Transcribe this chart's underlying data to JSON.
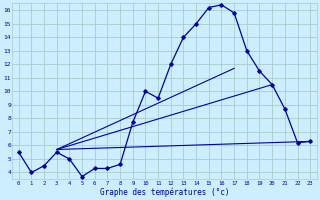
{
  "xlabel": "Graphe des températures (°c)",
  "bg_color": "#cceeff",
  "grid_color": "#aacccc",
  "line_color": "#0000aa",
  "xlim": [
    -0.5,
    23.5
  ],
  "ylim": [
    3.5,
    16.5
  ],
  "xticks": [
    0,
    1,
    2,
    3,
    4,
    5,
    6,
    7,
    8,
    9,
    10,
    11,
    12,
    13,
    14,
    15,
    16,
    17,
    18,
    19,
    20,
    21,
    22,
    23
  ],
  "yticks": [
    4,
    5,
    6,
    7,
    8,
    9,
    10,
    11,
    12,
    13,
    14,
    15,
    16
  ],
  "main_x": [
    0,
    1,
    2,
    3,
    4,
    5,
    6,
    7,
    8,
    9,
    10,
    11,
    12,
    13,
    14,
    15,
    16,
    17,
    18,
    19,
    20,
    21,
    22,
    23
  ],
  "main_y": [
    5.5,
    4.0,
    4.5,
    5.5,
    5.0,
    3.7,
    4.3,
    4.3,
    4.6,
    7.7,
    10.0,
    9.5,
    12.0,
    14.0,
    15.0,
    16.2,
    16.4,
    15.8,
    13.0,
    11.5,
    10.5,
    8.7,
    6.2,
    6.3
  ],
  "line2_x": [
    3,
    23
  ],
  "line2_y": [
    5.7,
    6.3
  ],
  "line3_x": [
    3,
    20
  ],
  "line3_y": [
    5.7,
    10.5
  ],
  "line4_x": [
    3,
    17
  ],
  "line4_y": [
    5.7,
    11.7
  ]
}
